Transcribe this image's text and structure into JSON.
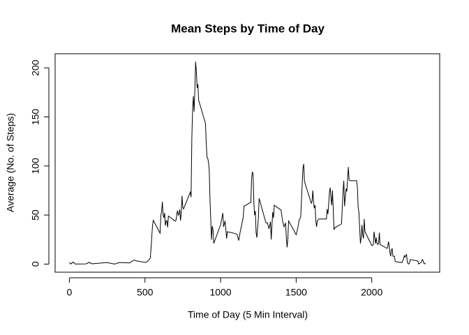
{
  "chart_data": {
    "type": "line",
    "title": "Mean Steps by Time of Day",
    "x_label": "Time of Day (5 Min Interval)",
    "y_label": "Average (No. of Steps)",
    "xlim": [
      -94.2,
      2449.2
    ],
    "ylim": [
      -8.25,
      214.4
    ],
    "xticks": [
      0,
      500,
      1000,
      1500,
      2000
    ],
    "yticks": [
      0,
      50,
      100,
      150,
      200
    ],
    "color": "#000000",
    "x": [
      0,
      10,
      25,
      40,
      55,
      110,
      130,
      150,
      210,
      250,
      300,
      330,
      400,
      410,
      430,
      440,
      450,
      505,
      520,
      535,
      540,
      550,
      555,
      600,
      605,
      610,
      615,
      620,
      625,
      630,
      635,
      640,
      645,
      650,
      655,
      700,
      705,
      710,
      715,
      720,
      725,
      730,
      735,
      740,
      745,
      750,
      755,
      800,
      805,
      810,
      815,
      820,
      825,
      830,
      835,
      840,
      845,
      850,
      855,
      900,
      905,
      910,
      915,
      920,
      925,
      930,
      935,
      940,
      945,
      950,
      955,
      1000,
      1015,
      1020,
      1030,
      1040,
      1045,
      1100,
      1110,
      1120,
      1130,
      1145,
      1150,
      1155,
      1200,
      1205,
      1210,
      1215,
      1220,
      1225,
      1230,
      1235,
      1240,
      1250,
      1255,
      1300,
      1310,
      1320,
      1330,
      1335,
      1340,
      1345,
      1350,
      1355,
      1400,
      1410,
      1420,
      1430,
      1435,
      1440,
      1445,
      1450,
      1500,
      1510,
      1520,
      1530,
      1540,
      1545,
      1550,
      1555,
      1600,
      1605,
      1610,
      1615,
      1620,
      1625,
      1630,
      1635,
      1640,
      1645,
      1650,
      1700,
      1705,
      1710,
      1715,
      1720,
      1725,
      1730,
      1735,
      1740,
      1745,
      1750,
      1755,
      1800,
      1805,
      1810,
      1815,
      1820,
      1825,
      1830,
      1835,
      1840,
      1845,
      1850,
      1855,
      1900,
      1905,
      1910,
      1915,
      1920,
      1925,
      1930,
      1935,
      1940,
      1945,
      1950,
      1955,
      2000,
      2005,
      2010,
      2015,
      2020,
      2025,
      2030,
      2035,
      2040,
      2045,
      2050,
      2055,
      2100,
      2105,
      2110,
      2115,
      2120,
      2125,
      2130,
      2135,
      2140,
      2145,
      2150,
      2155,
      2200,
      2205,
      2210,
      2215,
      2220,
      2225,
      2230,
      2235,
      2240,
      2245,
      2250,
      2255,
      2300,
      2305,
      2310,
      2315,
      2320,
      2325,
      2330,
      2335,
      2340,
      2345,
      2350,
      2355
    ],
    "values": [
      1.7,
      0.1,
      2.1,
      0,
      0.1,
      0.2,
      1.8,
      0.3,
      1.1,
      1.5,
      0,
      1.6,
      1.2,
      2.6,
      4.1,
      3.5,
      3.1,
      1.6,
      3.3,
      6.1,
      16,
      39.5,
      44.5,
      31.5,
      49.3,
      53.8,
      63.5,
      50,
      47.1,
      52.2,
      39.3,
      44,
      44.2,
      37.4,
      49,
      43.8,
      44.4,
      50.5,
      54.5,
      49.9,
      51,
      55.7,
      44.3,
      52.3,
      69.5,
      57.8,
      56.2,
      73.4,
      68.2,
      129.4,
      157.5,
      171.2,
      155.4,
      177.3,
      206.2,
      195.9,
      179.6,
      183.4,
      167,
      143.5,
      124,
      109.1,
      108.1,
      103.7,
      96,
      66.2,
      45.2,
      24.8,
      38.8,
      35,
      21.1,
      40,
      52,
      38,
      44,
      26,
      33,
      31,
      30,
      24,
      33,
      44,
      48,
      59,
      63,
      87,
      94,
      92,
      63,
      50,
      54,
      32,
      27,
      47,
      67,
      42,
      42,
      36,
      43,
      25,
      40,
      53,
      47,
      60,
      55,
      44,
      38,
      42,
      27,
      17,
      26,
      44,
      30,
      36,
      45,
      48,
      82,
      98,
      102,
      84,
      62,
      64,
      75,
      63,
      57,
      60,
      44,
      38,
      44,
      45,
      46,
      46,
      56,
      51,
      61,
      73,
      78,
      68,
      60,
      75,
      57,
      35,
      37,
      41,
      58,
      74,
      85,
      59,
      68,
      77,
      74,
      86,
      99,
      86,
      85,
      85,
      78,
      58,
      53,
      36,
      21,
      27,
      40,
      30,
      26,
      46,
      33,
      19,
      19,
      20,
      33,
      27,
      21,
      27,
      21,
      20,
      21,
      32,
      20,
      16,
      17,
      23,
      19,
      12,
      8,
      14,
      16,
      8,
      8,
      8,
      2.6,
      1.5,
      3.7,
      4.8,
      8.5,
      7.1,
      8.7,
      9.8,
      2.2,
      0.3,
      0.1,
      1.6,
      4.6,
      3.3,
      2.8,
      0,
      0.8,
      1,
      1.6,
      2.6,
      4.7,
      3.3,
      0.6,
      0.2,
      1.1
    ]
  }
}
